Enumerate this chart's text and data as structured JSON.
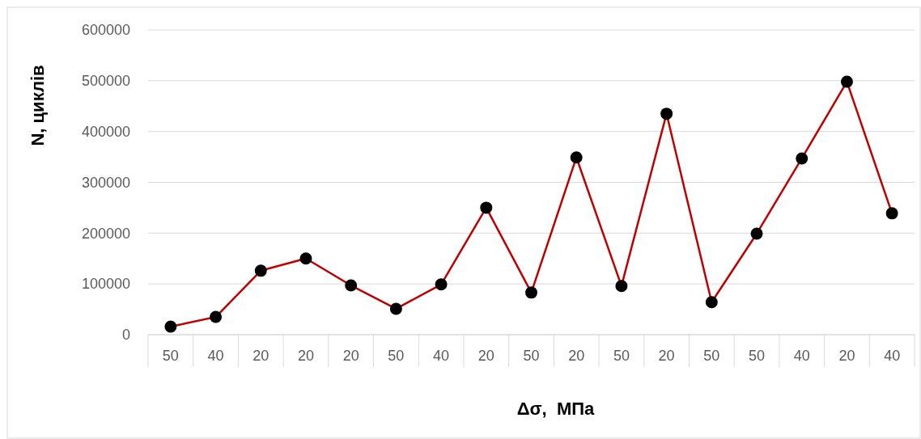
{
  "chart_data": {
    "type": "line",
    "xlabel": "Δσ,  МПа",
    "ylabel": "N, циклів",
    "categories": [
      "50",
      "40",
      "20",
      "20",
      "20",
      "50",
      "40",
      "20",
      "50",
      "20",
      "50",
      "20",
      "50",
      "50",
      "40",
      "20",
      "40"
    ],
    "series": [
      {
        "color": "#c00000",
        "values": [
          16000,
          35000,
          126000,
          150000,
          97000,
          51000,
          99000,
          250000,
          83000,
          349000,
          96000,
          435000,
          64000,
          199000,
          347000,
          498000,
          239000
        ]
      }
    ],
    "ylim": [
      0,
      600000
    ],
    "yticks": [
      0,
      100000,
      200000,
      300000,
      400000,
      500000,
      600000
    ],
    "grid": "y",
    "marker": "circle",
    "line_style": "solid"
  }
}
